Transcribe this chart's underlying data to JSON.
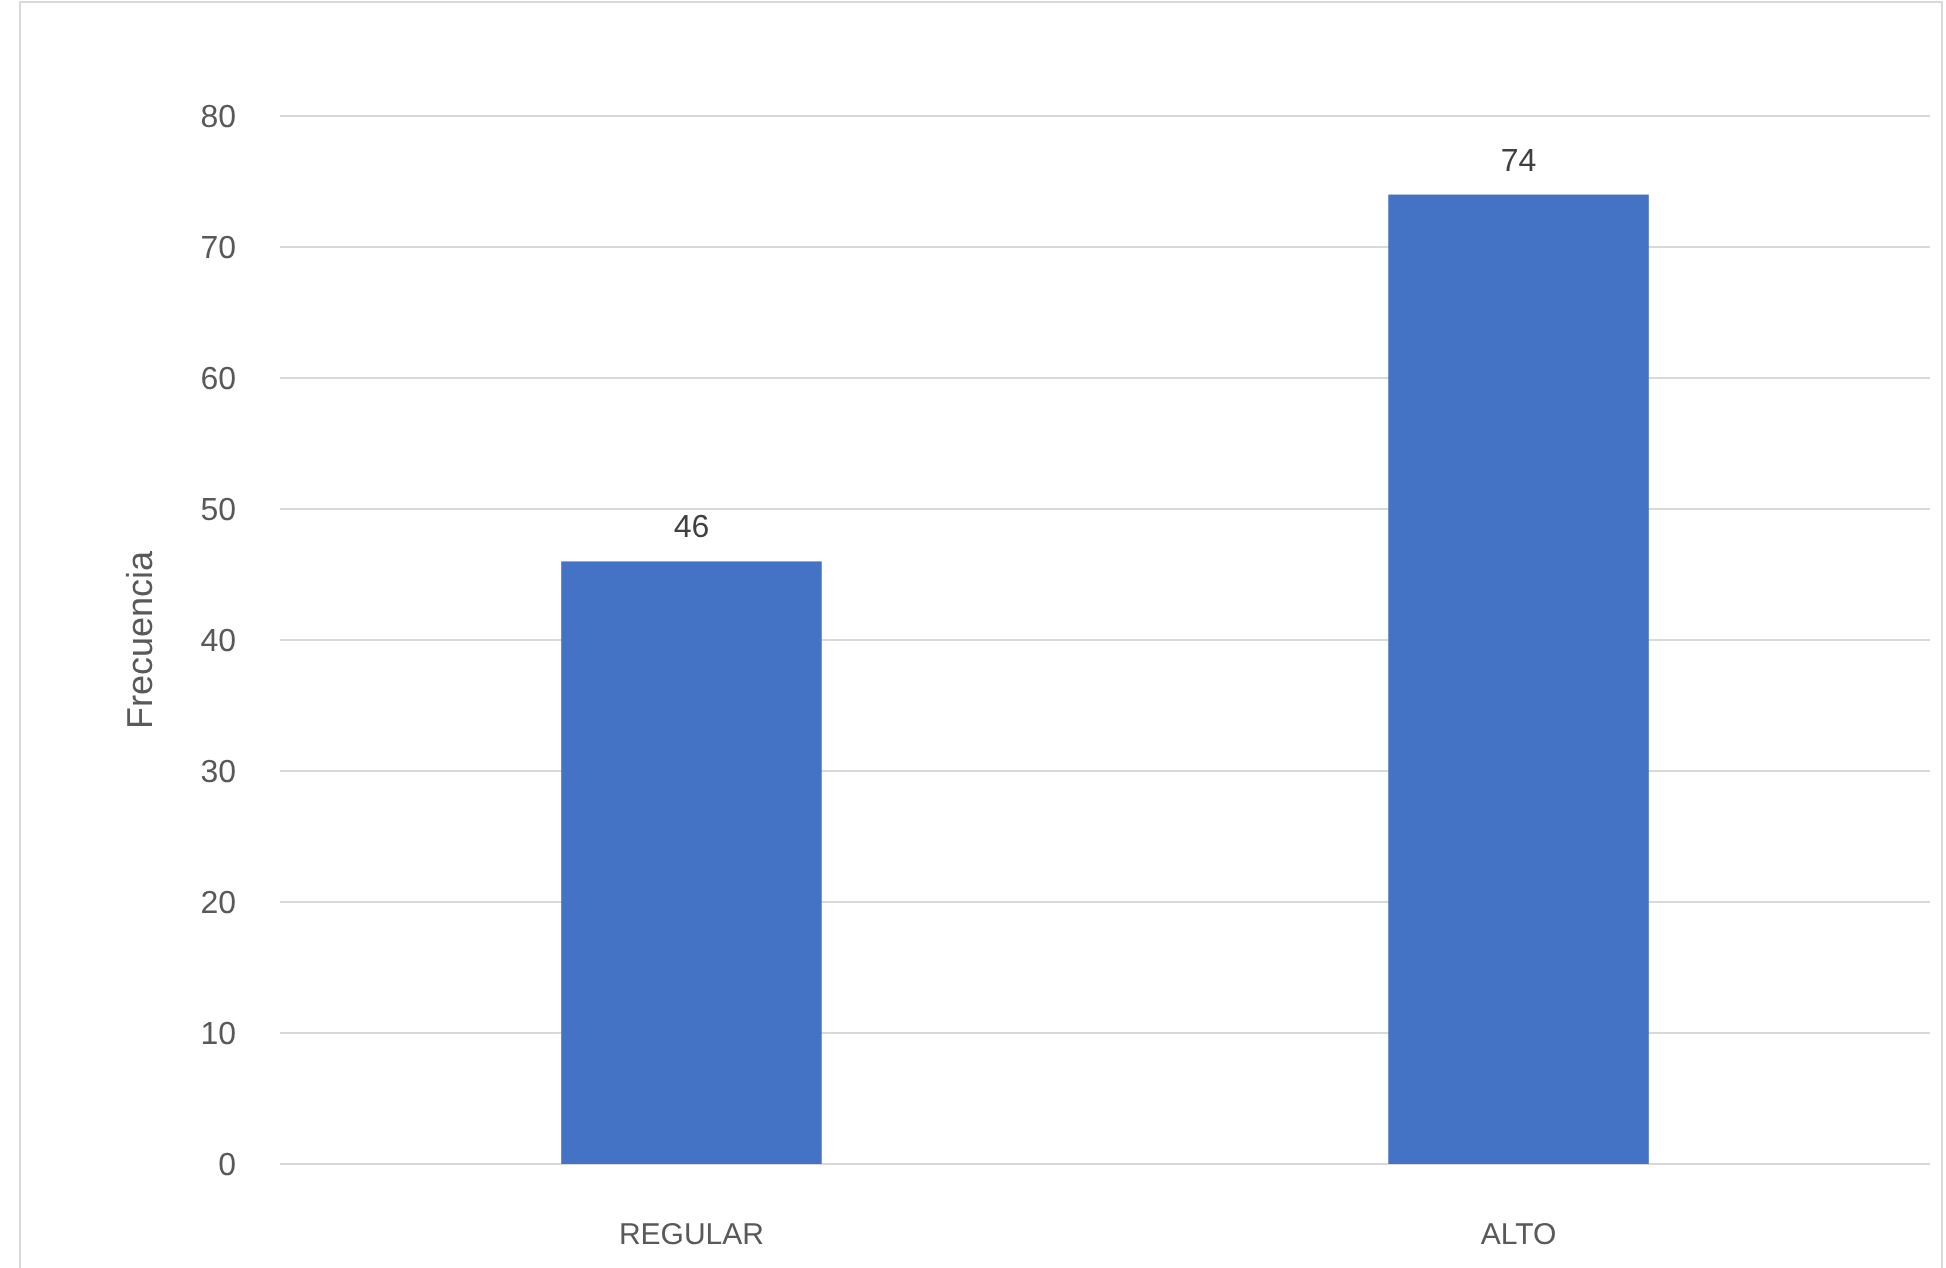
{
  "chart_data": {
    "type": "bar",
    "ylabel": "Frecuencia",
    "categories": [
      "REGULAR",
      "ALTO"
    ],
    "values": [
      46,
      74
    ],
    "color": "#4472c4",
    "ylim": [
      0,
      80
    ],
    "yticks": [
      0,
      10,
      20,
      30,
      40,
      50,
      60,
      70,
      80
    ],
    "grid": "y",
    "data_labels": true
  }
}
